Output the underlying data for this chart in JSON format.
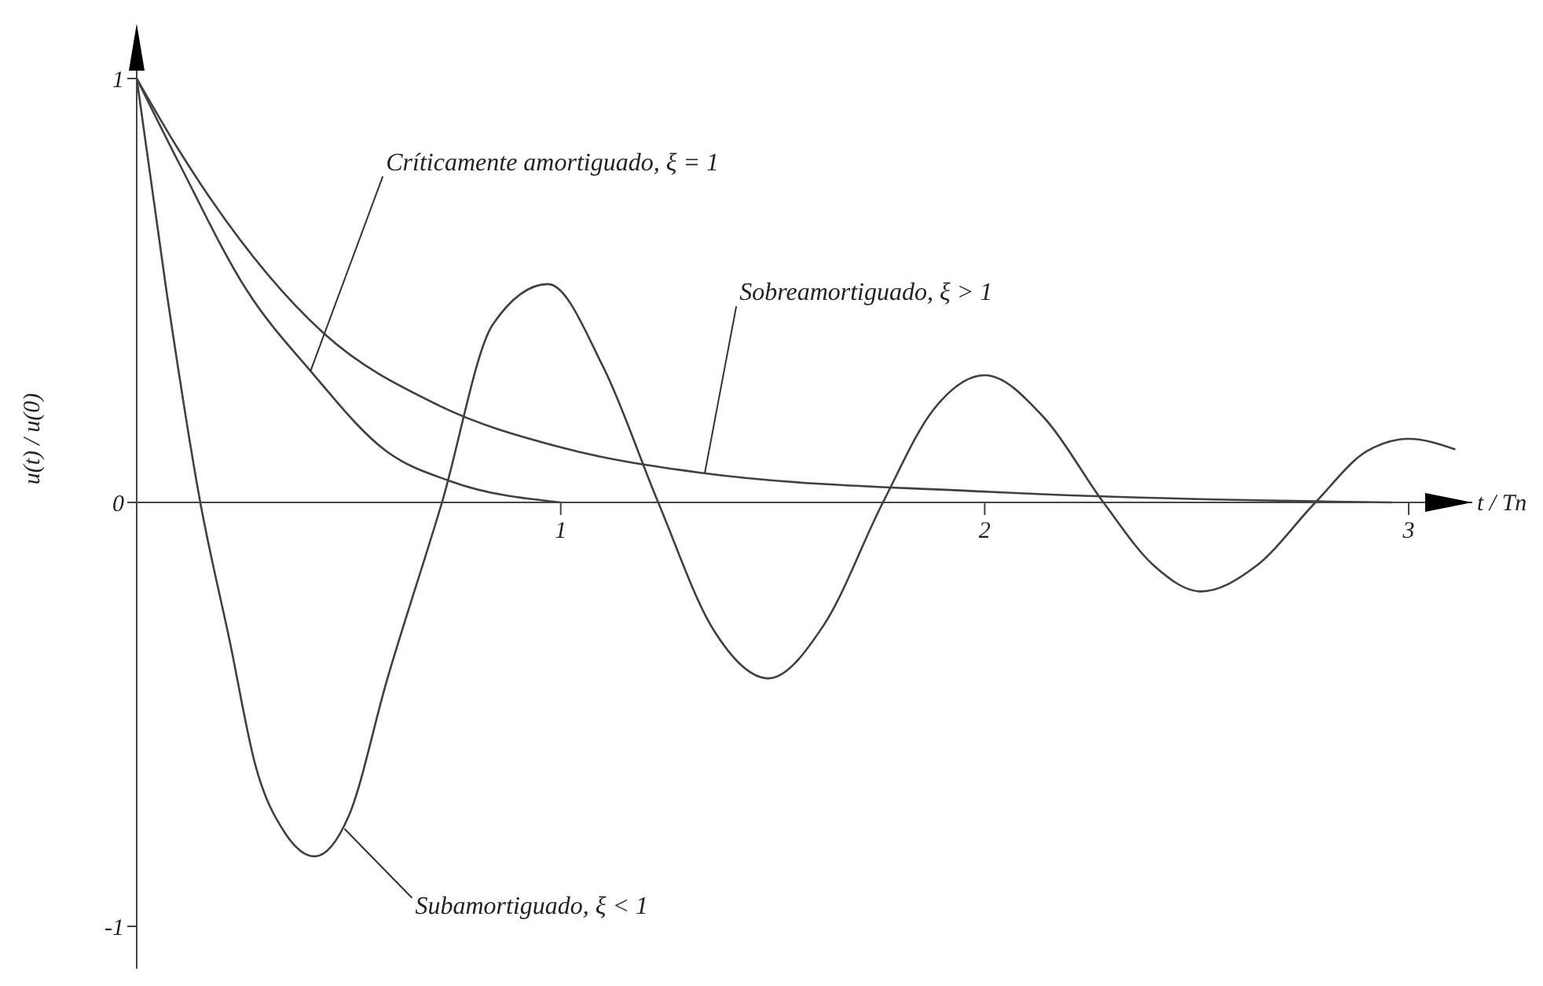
{
  "chart_data": {
    "type": "line",
    "xlabel": "t / Tn",
    "ylabel": "u(t) / u(0)",
    "xlim": [
      0,
      3.15
    ],
    "ylim": [
      -1.1,
      1.1
    ],
    "xticks": [
      1,
      2,
      3
    ],
    "yticks": [
      -1,
      0,
      1
    ],
    "grid": false,
    "legend": false,
    "marker": "none",
    "line_style": "solid",
    "series": [
      {
        "color": "#404040",
        "x": [
          0,
          0.07,
          0.15,
          0.22,
          0.28,
          0.35,
          0.42,
          0.5,
          0.59,
          0.72,
          0.84,
          0.97,
          1.1,
          1.23,
          1.36,
          1.49,
          1.62,
          1.76,
          1.88,
          2.0,
          2.14,
          2.28,
          2.4,
          2.51,
          2.64,
          2.78,
          2.9,
          3.0,
          3.11
        ],
        "values": [
          1,
          0.5,
          0,
          -0.33,
          -0.62,
          -0.78,
          -0.835,
          -0.74,
          -0.42,
          0,
          0.42,
          0.515,
          0.32,
          0,
          -0.3,
          -0.415,
          -0.29,
          0,
          0.22,
          0.3,
          0.2,
          0,
          -0.15,
          -0.21,
          -0.15,
          0,
          0.12,
          0.15,
          0.125
        ]
      },
      {
        "color": "#404040",
        "x": [
          0,
          0.1,
          0.26,
          0.41,
          0.59,
          0.74,
          1.0
        ],
        "values": [
          1,
          0.8,
          0.5,
          0.31,
          0.12,
          0.05,
          0
        ]
      },
      {
        "color": "#404040",
        "x": [
          0,
          0.1,
          0.44,
          0.71,
          1.0,
          1.33,
          2.01,
          2.96
        ],
        "values": [
          1,
          0.83,
          0.4,
          0.23,
          0.13,
          0.07,
          0.025,
          0
        ]
      }
    ],
    "annotations": [
      {
        "text": "Críticamente amortiguado, ξ = 1",
        "x": 0.41,
        "y": 0.31
      },
      {
        "text": "Sobreamortiguado, ξ > 1",
        "x": 1.34,
        "y": 0.07
      },
      {
        "text": "Subamortiguado, ξ < 1",
        "x": 0.49,
        "y": -0.77
      }
    ]
  }
}
